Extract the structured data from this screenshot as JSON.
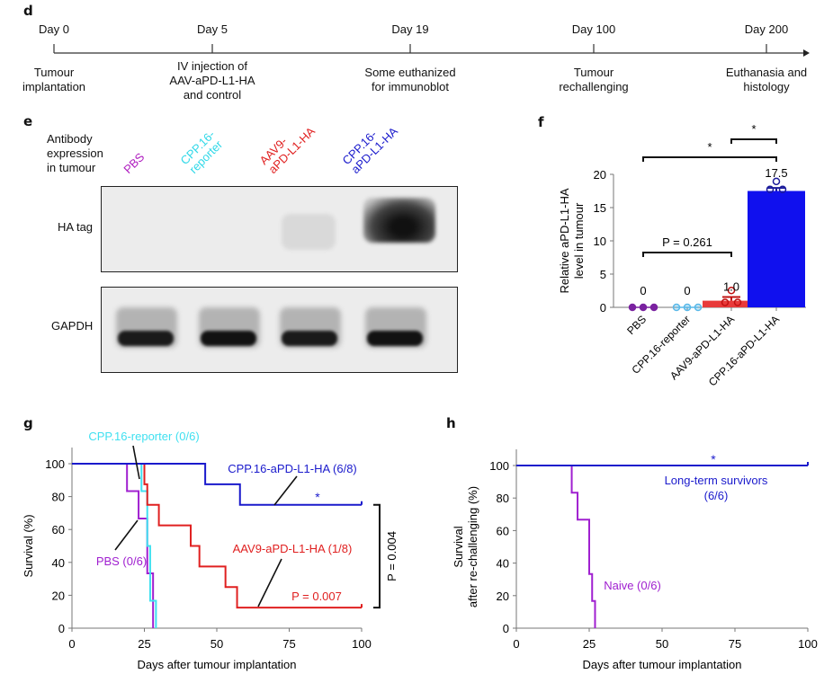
{
  "panels": {
    "d": {
      "label": "d",
      "events": [
        {
          "day": "Day 0",
          "desc": [
            "Tumour",
            "implantation"
          ]
        },
        {
          "day": "Day 5",
          "desc": [
            "IV injection of",
            "AAV-aPD-L1-HA",
            "and control"
          ]
        },
        {
          "day": "Day 19",
          "desc": [
            "Some euthanized",
            "for immunoblot"
          ]
        },
        {
          "day": "Day 100",
          "desc": [
            "Tumour",
            "rechallenging"
          ]
        },
        {
          "day": "Day 200",
          "desc": [
            "Euthanasia and",
            "histology"
          ]
        }
      ]
    },
    "e": {
      "label": "e",
      "header": [
        "Antibody",
        "expression",
        "in tumour"
      ],
      "lanes": [
        {
          "name": "PBS",
          "lines": [
            "PBS"
          ],
          "color": "#b020c0"
        },
        {
          "name": "CPP.16-reporter",
          "lines": [
            "CPP.16-",
            "reporter"
          ],
          "color": "#30d8e8"
        },
        {
          "name": "AAV9-aPD-L1-HA",
          "lines": [
            "AAV9-",
            "aPD-L1-HA"
          ],
          "color": "#e02020"
        },
        {
          "name": "CPP.16-aPD-L1-HA",
          "lines": [
            "CPP.16-",
            "aPD-L1-HA"
          ],
          "color": "#1a1acc"
        }
      ],
      "blots": [
        {
          "label": "HA tag",
          "band_intensity": [
            0.0,
            0.0,
            0.08,
            0.85
          ]
        },
        {
          "label": "GAPDH",
          "band_intensity": [
            0.9,
            0.95,
            0.9,
            0.95
          ]
        }
      ]
    },
    "f": {
      "label": "f"
    },
    "g": {
      "label": "g"
    },
    "h": {
      "label": "h"
    }
  },
  "chart_data": [
    {
      "panel": "f",
      "type": "bar",
      "ylabel": [
        "Relative aPD-L1-HA",
        "level in tumour"
      ],
      "ylim": [
        0,
        20
      ],
      "yticks": [
        0,
        5,
        10,
        15,
        20
      ],
      "categories": [
        "PBS",
        "CPP.16-reporter",
        "AAV9-aPD-L1-HA",
        "CPP.16-aPD-L1-HA"
      ],
      "values": [
        0,
        0,
        1.0,
        17.5
      ],
      "value_labels": [
        "0",
        "0",
        "1.0",
        "17.5"
      ],
      "error": [
        0,
        0,
        0.55,
        0.45
      ],
      "points": [
        [
          0,
          0,
          0
        ],
        [
          0,
          0,
          0
        ],
        [
          0.2,
          0.2,
          2.0
        ],
        [
          17.2,
          17.2,
          18.4
        ]
      ],
      "colors": [
        "#8a2aa8",
        "#5ab8e8",
        "#e83a3a",
        "#1010ee"
      ],
      "point_colors": [
        "#7a22a0",
        "#58b8e8",
        "#c01010",
        "#1a1a9a"
      ],
      "significance": [
        {
          "from": 0,
          "to": 3,
          "text": "*"
        },
        {
          "from": 2,
          "to": 3,
          "text": "*"
        },
        {
          "from": 0,
          "to": 2,
          "text": "P = 0.261"
        }
      ]
    },
    {
      "panel": "g",
      "type": "line",
      "step": true,
      "xlabel": "Days after tumour implantation",
      "ylabel": "Survival (%)",
      "xlim": [
        0,
        100
      ],
      "ylim": [
        0,
        100
      ],
      "xticks": [
        0,
        25,
        50,
        75,
        100
      ],
      "yticks": [
        0,
        20,
        40,
        60,
        80,
        100
      ],
      "series": [
        {
          "name": "CPP.16-aPD-L1-HA (6/8)",
          "color": "#1a1acc",
          "x": [
            0,
            46,
            58,
            100
          ],
          "y": [
            100,
            87.5,
            75,
            75
          ],
          "annotation": "*"
        },
        {
          "name": "AAV9-aPD-L1-HA (1/8)",
          "color": "#e02020",
          "x": [
            0,
            25,
            26,
            30,
            41,
            44,
            53,
            57,
            100
          ],
          "y": [
            100,
            87.5,
            75,
            62.5,
            50,
            37.5,
            25,
            12.5,
            12.5
          ],
          "annotation": "P = 0.007"
        },
        {
          "name": "CPP.16-reporter (0/6)",
          "color": "#40e0f0",
          "x": [
            0,
            24,
            26,
            27,
            28,
            29
          ],
          "y": [
            100,
            83.3,
            50,
            16.7,
            16.7,
            0
          ]
        },
        {
          "name": "PBS (0/6)",
          "color": "#a020d0",
          "x": [
            0,
            19,
            23,
            26,
            28
          ],
          "y": [
            100,
            83.3,
            66.7,
            33.3,
            0
          ]
        }
      ],
      "bracket_text": "P = 0.004"
    },
    {
      "panel": "h",
      "type": "line",
      "step": true,
      "xlabel": "Days after tumour implantation",
      "ylabel": [
        "Survival",
        "after re-challenging (%)"
      ],
      "xlim": [
        0,
        100
      ],
      "ylim": [
        0,
        100
      ],
      "xticks": [
        0,
        25,
        50,
        75,
        100
      ],
      "yticks": [
        0,
        20,
        40,
        60,
        80,
        100
      ],
      "series": [
        {
          "name": "Long-term survivors",
          "sub": "(6/6)",
          "color": "#1a1acc",
          "x": [
            0,
            100
          ],
          "y": [
            100,
            100
          ],
          "annotation": "*"
        },
        {
          "name": "Naive (0/6)",
          "color": "#a020d0",
          "x": [
            0,
            19,
            21,
            25,
            26,
            27
          ],
          "y": [
            100,
            83.3,
            66.7,
            33.3,
            16.7,
            0
          ]
        }
      ]
    }
  ]
}
